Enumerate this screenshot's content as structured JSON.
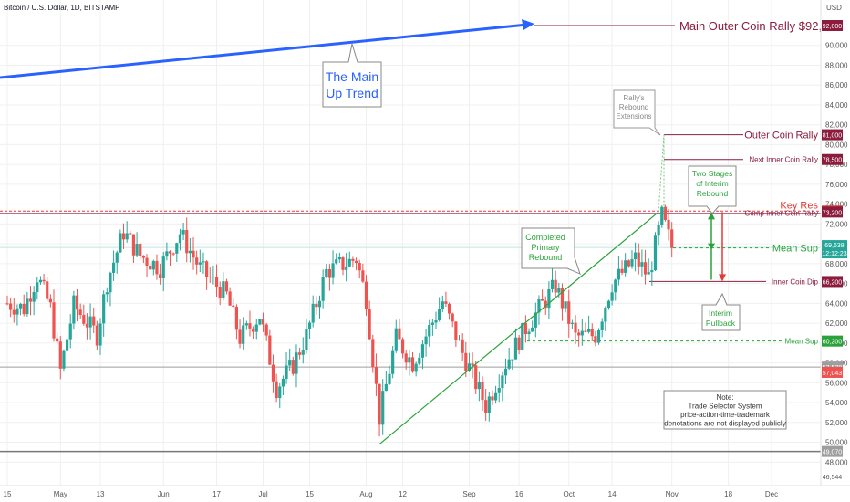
{
  "header": {
    "symbol": "Bitcoin / U.S. Dollar, 1D, BITSTAMP",
    "currency": "USD"
  },
  "chart_data": {
    "type": "candlestick",
    "title": "Bitcoin / U.S. Dollar, 1D, BITSTAMP",
    "y_unit": "USD",
    "ylim": [
      46000,
      94000
    ],
    "yticks": [
      48000,
      50000,
      52000,
      54000,
      56000,
      58000,
      60000,
      62000,
      64000,
      66000,
      68000,
      70000,
      72000,
      74000,
      76000,
      78000,
      80000,
      82000,
      84000,
      86000,
      88000,
      90000
    ],
    "ytick_labels": [
      "48,000",
      "50,000",
      "52,000",
      "54,000",
      "56,000",
      "58,000",
      "60,000",
      "62,000",
      "64,000",
      "66,000",
      "68,000",
      "70,000",
      "72,000",
      "74,000",
      "76,000",
      "78,000",
      "80,000",
      "82,000",
      "84,000",
      "86,000",
      "88,000",
      "90,000"
    ],
    "x_labels": [
      "15",
      "May",
      "13",
      "Jun",
      "17",
      "Jul",
      "15",
      "Aug",
      "12",
      "Sep",
      "16",
      "Oct",
      "14",
      "Nov",
      "18",
      "Dec"
    ],
    "price_path": [
      [
        "2024-04-15",
        64000
      ],
      [
        "2024-04-20",
        63500
      ],
      [
        "2024-04-24",
        66800
      ],
      [
        "2024-04-28",
        63500
      ],
      [
        "2024-05-01",
        57200
      ],
      [
        "2024-05-05",
        63800
      ],
      [
        "2024-05-12",
        60800
      ],
      [
        "2024-05-15",
        66200
      ],
      [
        "2024-05-20",
        71200
      ],
      [
        "2024-05-25",
        68800
      ],
      [
        "2024-05-31",
        67600
      ],
      [
        "2024-06-06",
        71100
      ],
      [
        "2024-06-12",
        67500
      ],
      [
        "2024-06-20",
        64800
      ],
      [
        "2024-06-24",
        60500
      ],
      [
        "2024-06-30",
        62800
      ],
      [
        "2024-07-05",
        55500
      ],
      [
        "2024-07-10",
        57800
      ],
      [
        "2024-07-14",
        60800
      ],
      [
        "2024-07-20",
        67200
      ],
      [
        "2024-07-29",
        68500
      ],
      [
        "2024-08-01",
        64500
      ],
      [
        "2024-08-05",
        52500
      ],
      [
        "2024-08-10",
        60500
      ],
      [
        "2024-08-15",
        58000
      ],
      [
        "2024-08-24",
        64200
      ],
      [
        "2024-08-30",
        59000
      ],
      [
        "2024-09-06",
        53700
      ],
      [
        "2024-09-12",
        58000
      ],
      [
        "2024-09-18",
        61500
      ],
      [
        "2024-09-27",
        65800
      ],
      [
        "2024-10-03",
        60600
      ],
      [
        "2024-10-09",
        60800
      ],
      [
        "2024-10-14",
        66000
      ],
      [
        "2024-10-21",
        68500
      ],
      [
        "2024-10-25",
        66700
      ],
      [
        "2024-10-29",
        72800
      ],
      [
        "2024-11-01",
        69638
      ]
    ],
    "price_levels": [
      {
        "label": "Main Outer Coin Rally $92,000",
        "tag": "92,000",
        "value": 92000
      },
      {
        "label": "Outer Coin Rally",
        "tag": "81,000",
        "value": 81000
      },
      {
        "label": "Next Inner Coin Rally",
        "tag": "78,500",
        "value": 78500
      },
      {
        "label": "Key Res",
        "tag": "73,300",
        "value": 73300
      },
      {
        "label": "Comp Inner Coin Rally",
        "tag": "73,200",
        "value": 73200
      },
      {
        "label": "Mean Sup",
        "tag": "69,400",
        "value": 69400
      },
      {
        "label": "Inner Coin Dip",
        "tag": "66,200",
        "value": 66200
      },
      {
        "label": "Mean Sup",
        "tag": "60,200",
        "value": 60200
      }
    ],
    "other_tags": [
      {
        "tag": "57,578",
        "value": 57578
      },
      {
        "tag": "57,043",
        "value": 57043
      },
      {
        "tag": "49,070",
        "value": 49070
      },
      {
        "tag": "46,544",
        "value": 46544
      }
    ],
    "last_price": {
      "value": 69638,
      "price": "69,638",
      "countdown": "12:12:23"
    },
    "main_trend": {
      "label_line1": "The Main",
      "label_line2": "Up Trend"
    },
    "annotations": {
      "rally_rebound": [
        "Rally's",
        "Rebound",
        "Extensions"
      ],
      "completed_rebound": [
        "Completed",
        "Primary",
        "Rebound"
      ],
      "two_stages": [
        "Two Stages",
        "of Interim",
        "Rebound"
      ],
      "interim_pullback": [
        "Interim",
        "Pullback"
      ],
      "note": [
        "Note:",
        "Trade Selector System",
        "price-action-time-trademark",
        "denotations are not displayed publicly"
      ]
    }
  },
  "colors": {
    "up": "#26a69a",
    "down": "#ef5350",
    "dark_red": "#8b1c3e",
    "green_annot": "#2aa23a",
    "blue_trend": "#2962ff",
    "key_res": "#e53935",
    "gray_level": "#9e9e9e",
    "grid": "#f0f0f0"
  }
}
